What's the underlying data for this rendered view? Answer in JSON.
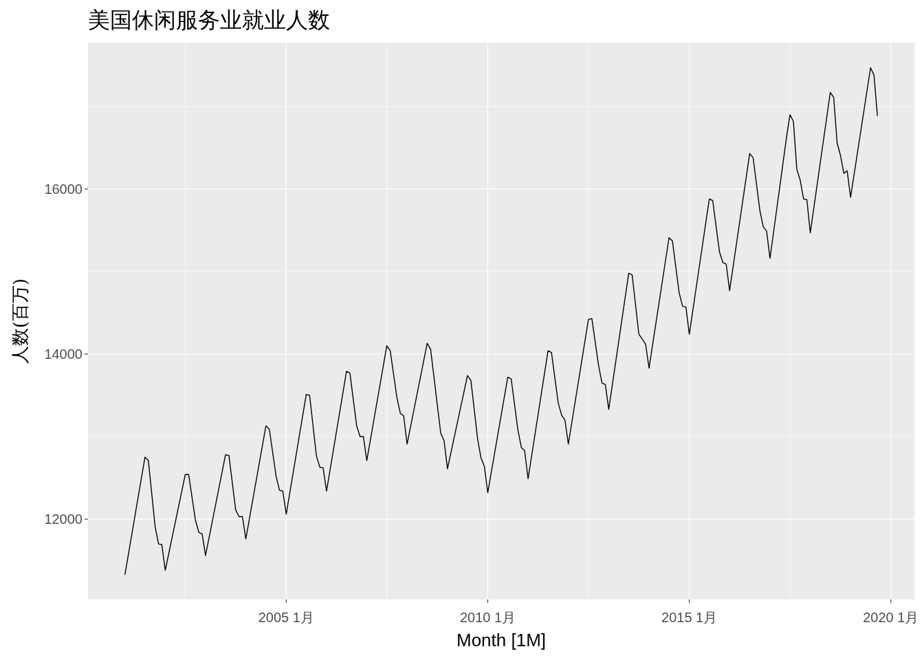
{
  "chart_data": {
    "type": "line",
    "title": "美国休闲服务业就业人数",
    "xlabel": "Month [1M]",
    "ylabel": "人数(百万)",
    "x": [
      "2001-01",
      "2001-07",
      "2001-08",
      "2001-10",
      "2001-11",
      "2001-12",
      "2002-01",
      "2002-07",
      "2002-08",
      "2002-10",
      "2002-11",
      "2002-12",
      "2003-01",
      "2003-07",
      "2003-08",
      "2003-10",
      "2003-11",
      "2003-12",
      "2004-01",
      "2004-07",
      "2004-08",
      "2004-10",
      "2004-11",
      "2004-12",
      "2005-01",
      "2005-07",
      "2005-08",
      "2005-10",
      "2005-11",
      "2005-12",
      "2006-01",
      "2006-07",
      "2006-08",
      "2006-10",
      "2006-11",
      "2006-12",
      "2007-01",
      "2007-07",
      "2007-08",
      "2007-10",
      "2007-11",
      "2007-12",
      "2008-01",
      "2008-07",
      "2008-08",
      "2008-10",
      "2008-11",
      "2008-12",
      "2009-01",
      "2009-07",
      "2009-08",
      "2009-10",
      "2009-11",
      "2009-12",
      "2010-01",
      "2010-07",
      "2010-08",
      "2010-10",
      "2010-11",
      "2010-12",
      "2011-01",
      "2011-07",
      "2011-08",
      "2011-10",
      "2011-11",
      "2011-12",
      "2012-01",
      "2012-07",
      "2012-08",
      "2012-10",
      "2012-11",
      "2012-12",
      "2013-01",
      "2013-07",
      "2013-08",
      "2013-10",
      "2013-11",
      "2013-12",
      "2014-01",
      "2014-07",
      "2014-08",
      "2014-10",
      "2014-11",
      "2014-12",
      "2015-01",
      "2015-07",
      "2015-08",
      "2015-10",
      "2015-11",
      "2015-12",
      "2016-01",
      "2016-07",
      "2016-08",
      "2016-10",
      "2016-11",
      "2016-12",
      "2017-01",
      "2017-06",
      "2017-07",
      "2017-08",
      "2017-09",
      "2017-10",
      "2017-11",
      "2017-12",
      "2018-01",
      "2018-07",
      "2018-08",
      "2018-09",
      "2018-10",
      "2018-11",
      "2018-12",
      "2019-01",
      "2019-07",
      "2019-08",
      "2019-09"
    ],
    "series": [
      {
        "color": "#000000",
        "values": [
          11330,
          12750,
          12710,
          11910,
          11700,
          11690,
          11380,
          12540,
          12540,
          11990,
          11840,
          11820,
          11560,
          12780,
          12770,
          12110,
          12030,
          12030,
          11760,
          13130,
          13090,
          12520,
          12350,
          12340,
          12060,
          13510,
          13500,
          12770,
          12630,
          12620,
          12340,
          13790,
          13770,
          13130,
          13000,
          13000,
          12710,
          14100,
          14040,
          13470,
          13280,
          13250,
          12910,
          14130,
          14060,
          13380,
          13040,
          12950,
          12610,
          13740,
          13680,
          12970,
          12740,
          12640,
          12320,
          13720,
          13700,
          13080,
          12870,
          12830,
          12490,
          14040,
          14020,
          13410,
          13260,
          13200,
          12910,
          14420,
          14430,
          13860,
          13650,
          13630,
          13330,
          14980,
          14960,
          14240,
          14180,
          14120,
          13830,
          15410,
          15370,
          14740,
          14580,
          14570,
          14240,
          15880,
          15860,
          15240,
          15110,
          15090,
          14770,
          16430,
          16380,
          15740,
          15540,
          15490,
          15160,
          16640,
          16900,
          16820,
          16240,
          16110,
          15880,
          15870,
          15470,
          17170,
          17110,
          16560,
          16410,
          16190,
          16220,
          15900,
          17470,
          17380,
          16890
        ]
      }
    ],
    "xlim": [
      "2000-02",
      "2020-08"
    ],
    "xticks": [
      {
        "value": "2002-07",
        "label": null
      },
      {
        "value": "2005-01",
        "label": "2005 1月"
      },
      {
        "value": "2007-07",
        "label": null
      },
      {
        "value": "2010-01",
        "label": "2010 1月"
      },
      {
        "value": "2012-07",
        "label": null
      },
      {
        "value": "2015-01",
        "label": "2015 1月"
      },
      {
        "value": "2017-07",
        "label": null
      },
      {
        "value": "2020-01",
        "label": "2020 1月"
      }
    ],
    "ylim": [
      11026,
      17774
    ],
    "yticks": [
      {
        "value": 12000,
        "label": "12000"
      },
      {
        "value": 13000,
        "label": null
      },
      {
        "value": 14000,
        "label": "14000"
      },
      {
        "value": 15000,
        "label": null
      },
      {
        "value": 16000,
        "label": "16000"
      },
      {
        "value": 17000,
        "label": null
      }
    ],
    "grid": true
  }
}
